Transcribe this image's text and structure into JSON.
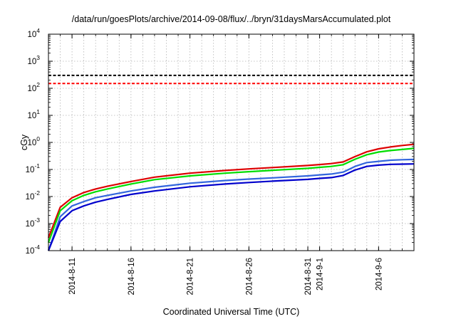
{
  "chart_data": {
    "type": "line",
    "title": "/data/run/goesPlots/archive/2014-09-08/flux/../bryn/31daysMarsAccumulated.plot",
    "xlabel": "Coordinated Universal Time (UTC)",
    "ylabel": "cGy",
    "y_scale": "log",
    "ylim": [
      0.0001,
      10000
    ],
    "y_ticks": [
      {
        "base": "10",
        "exp": "-4",
        "value": 0.0001
      },
      {
        "base": "10",
        "exp": "-3",
        "value": 0.001
      },
      {
        "base": "10",
        "exp": "-2",
        "value": 0.01
      },
      {
        "base": "10",
        "exp": "-1",
        "value": 0.1
      },
      {
        "base": "10",
        "exp": "0",
        "value": 1
      },
      {
        "base": "10",
        "exp": "1",
        "value": 10
      },
      {
        "base": "10",
        "exp": "2",
        "value": 100
      },
      {
        "base": "10",
        "exp": "3",
        "value": 1000
      },
      {
        "base": "10",
        "exp": "4",
        "value": 10000
      }
    ],
    "xlim": [
      "2014-08-09",
      "2014-09-09"
    ],
    "x_ticks": [
      {
        "label": "2014-8-11",
        "date": "2014-08-11"
      },
      {
        "label": "2014-8-16",
        "date": "2014-08-16"
      },
      {
        "label": "2014-8-21",
        "date": "2014-08-21"
      },
      {
        "label": "2014-8-26",
        "date": "2014-08-26"
      },
      {
        "label": "2014-8-31",
        "date": "2014-08-31"
      },
      {
        "label": "2014-9-1",
        "date": "2014-09-01"
      },
      {
        "label": "2014-9-6",
        "date": "2014-09-06"
      }
    ],
    "grid": true,
    "reference_lines": [
      {
        "y": 300,
        "color": "#000000",
        "style": "dashed"
      },
      {
        "y": 150,
        "color": "#ff0000",
        "style": "dashed"
      }
    ],
    "x": [
      "2014-08-09",
      "2014-08-10",
      "2014-08-11",
      "2014-08-12",
      "2014-08-13",
      "2014-08-14",
      "2014-08-16",
      "2014-08-18",
      "2014-08-21",
      "2014-08-24",
      "2014-08-26",
      "2014-08-28",
      "2014-08-31",
      "2014-09-01",
      "2014-09-02",
      "2014-09-03",
      "2014-09-04",
      "2014-09-05",
      "2014-09-06",
      "2014-09-07",
      "2014-09-08",
      "2014-09-09"
    ],
    "series": [
      {
        "color": "#dd0000",
        "values": [
          0.0003,
          0.004,
          0.009,
          0.014,
          0.019,
          0.024,
          0.036,
          0.052,
          0.073,
          0.092,
          0.105,
          0.118,
          0.14,
          0.152,
          0.165,
          0.19,
          0.3,
          0.45,
          0.58,
          0.68,
          0.77,
          0.85
        ]
      },
      {
        "color": "#00dd00",
        "values": [
          0.0002,
          0.003,
          0.007,
          0.011,
          0.015,
          0.019,
          0.029,
          0.042,
          0.058,
          0.073,
          0.083,
          0.093,
          0.11,
          0.12,
          0.13,
          0.15,
          0.24,
          0.35,
          0.44,
          0.5,
          0.55,
          0.6
        ]
      },
      {
        "color": "#3366dd",
        "values": [
          0.0001,
          0.0018,
          0.0045,
          0.0065,
          0.009,
          0.011,
          0.016,
          0.022,
          0.031,
          0.039,
          0.044,
          0.049,
          0.058,
          0.063,
          0.068,
          0.08,
          0.13,
          0.18,
          0.2,
          0.22,
          0.23,
          0.235
        ]
      },
      {
        "color": "#0000cc",
        "values": [
          0.0001,
          0.0012,
          0.003,
          0.0045,
          0.0062,
          0.0078,
          0.012,
          0.016,
          0.023,
          0.029,
          0.033,
          0.037,
          0.043,
          0.047,
          0.05,
          0.06,
          0.095,
          0.13,
          0.145,
          0.155,
          0.158,
          0.16
        ]
      }
    ]
  }
}
